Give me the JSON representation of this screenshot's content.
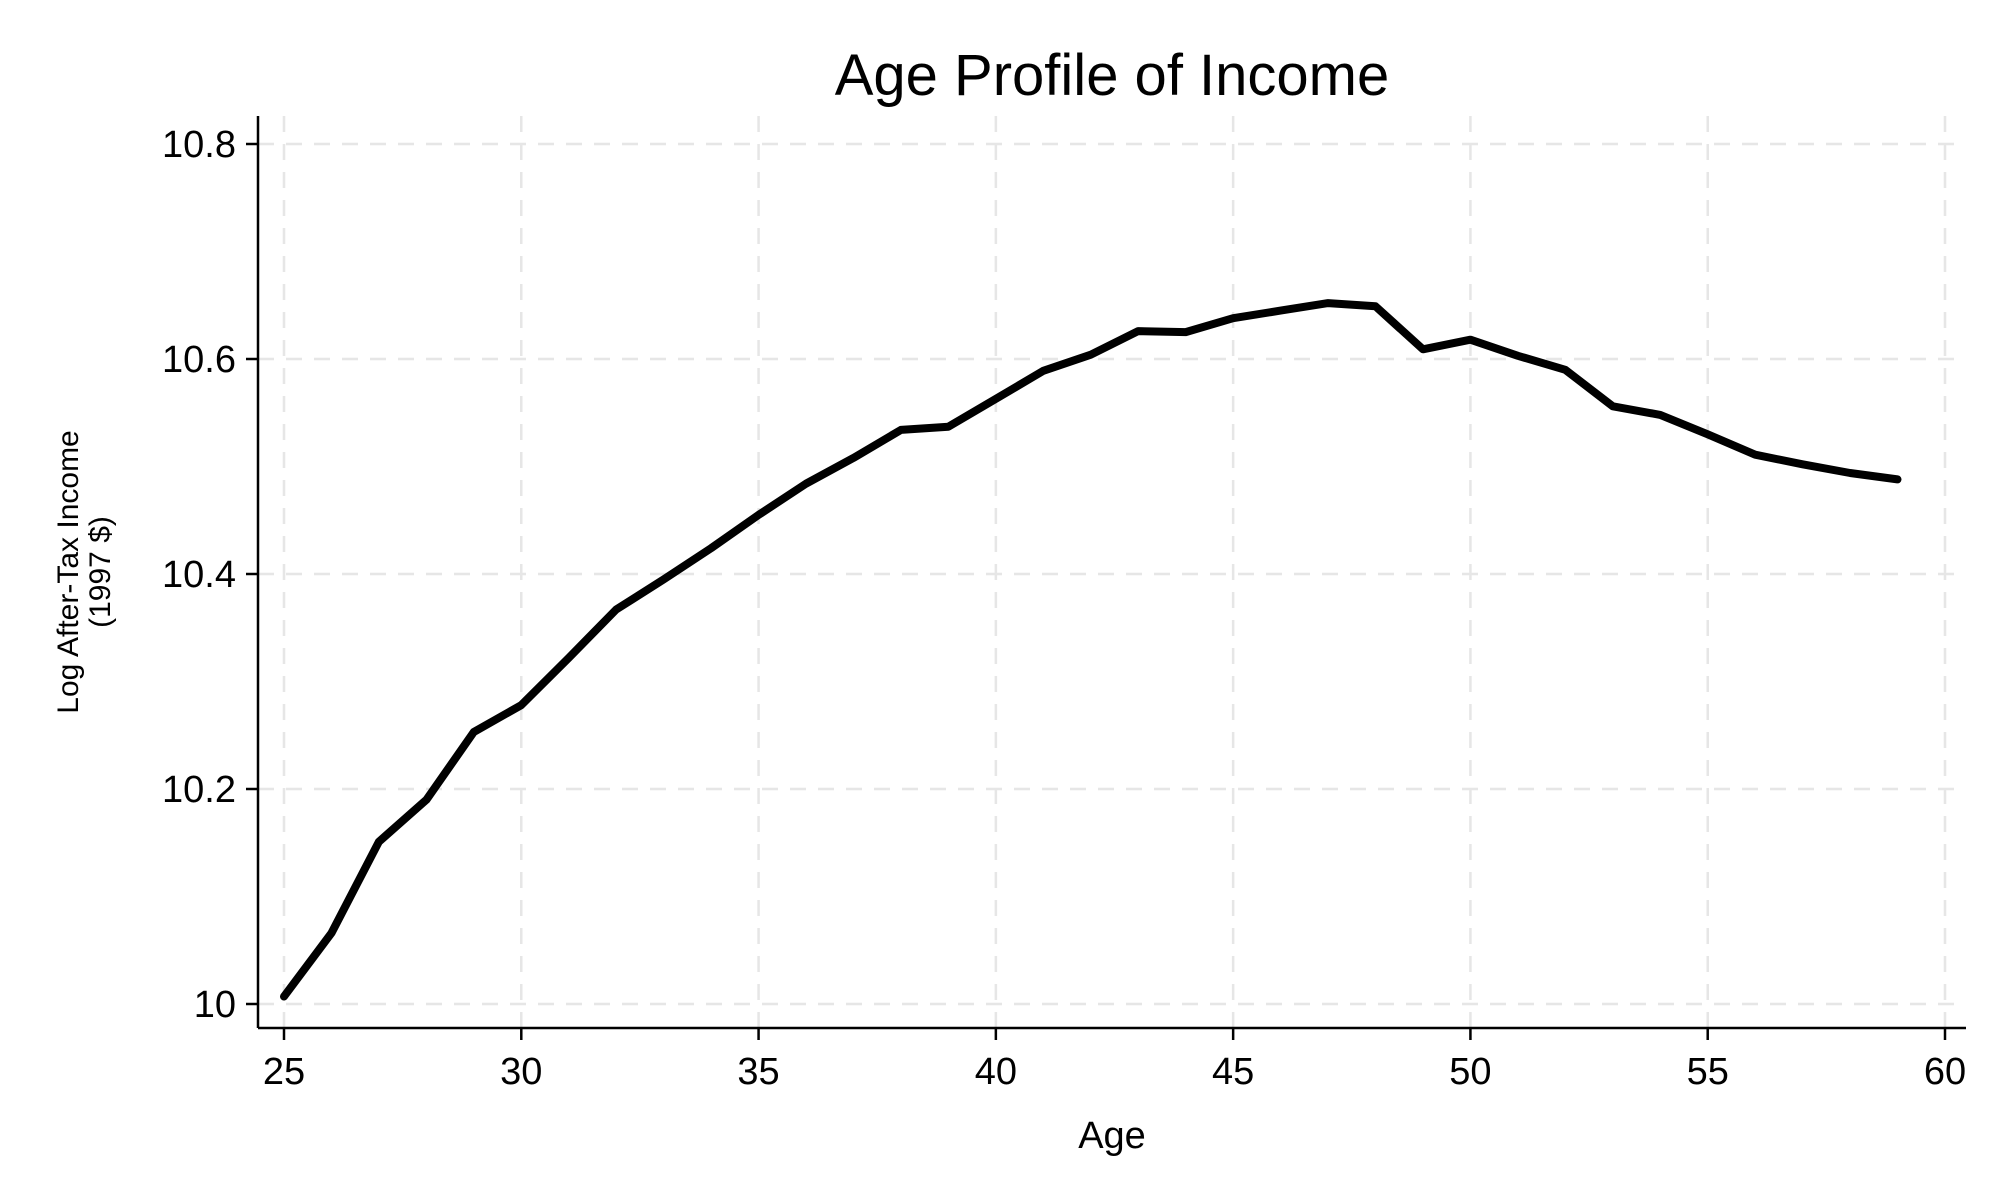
{
  "chart_data": {
    "type": "line",
    "title": "Age Profile of Income",
    "xlabel": "Age",
    "ylabel": [
      "Log After-Tax Income",
      "(1997 $)"
    ],
    "xlim": [
      25,
      60
    ],
    "ylim": [
      10,
      10.8
    ],
    "xticks": [
      25,
      30,
      35,
      40,
      45,
      50,
      55,
      60
    ],
    "yticks": [
      10,
      10.2,
      10.4,
      10.6,
      10.8
    ],
    "xtick_labels": [
      "25",
      "30",
      "35",
      "40",
      "45",
      "50",
      "55",
      "60"
    ],
    "ytick_labels": [
      "10",
      "10.2",
      "10.4",
      "10.6",
      "10.8"
    ],
    "grid": true,
    "legend": "none",
    "line_color": "#000000",
    "grid_color": "#e6e6e6",
    "series": [
      {
        "x": [
          25,
          26,
          27,
          28,
          29,
          30,
          31,
          32,
          33,
          34,
          35,
          36,
          37,
          38,
          39,
          40,
          41,
          42,
          43,
          44,
          45,
          46,
          47,
          48,
          49,
          50,
          51,
          52,
          53,
          54,
          55,
          56,
          57,
          58,
          59
        ],
        "values": [
          10.007,
          10.066,
          10.151,
          10.19,
          10.253,
          10.278,
          10.322,
          10.367,
          10.395,
          10.424,
          10.455,
          10.484,
          10.508,
          10.534,
          10.537,
          10.563,
          10.589,
          10.604,
          10.626,
          10.625,
          10.638,
          10.645,
          10.652,
          10.649,
          10.609,
          10.618,
          10.603,
          10.59,
          10.556,
          10.548,
          10.53,
          10.511,
          10.502,
          10.494,
          10.488
        ]
      }
    ]
  }
}
